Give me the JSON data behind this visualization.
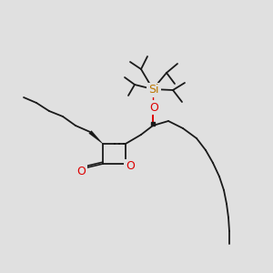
{
  "bg_color": "#e0e0e0",
  "bond_color": "#1a1a1a",
  "O_color": "#dd0000",
  "Si_color": "#bb7700",
  "Si_label": "Si",
  "O_label": "O",
  "figsize": [
    3.0,
    3.0
  ],
  "dpi": 100,
  "lw": 1.3
}
